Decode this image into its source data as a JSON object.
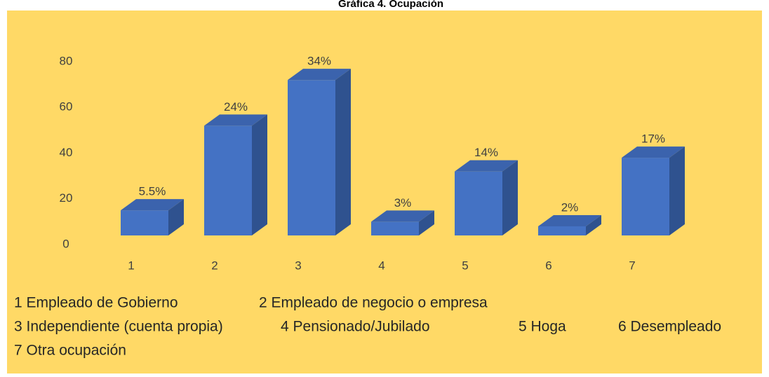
{
  "chart_data": {
    "type": "bar3d",
    "title": "Gráfica 4. Ocupación",
    "categories": [
      "1",
      "2",
      "3",
      "4",
      "5",
      "6",
      "7"
    ],
    "values": [
      11,
      48,
      68,
      6,
      28,
      4,
      34
    ],
    "value_labels": [
      "5.5%",
      "24%",
      "34%",
      "3%",
      "14%",
      "2%",
      "17%"
    ],
    "color": "#4472c4",
    "ylim": [
      0,
      80
    ],
    "yticks": [
      0,
      20,
      40,
      60,
      80
    ],
    "grid": false,
    "notes": [
      [
        "1 Empleado de Gobierno",
        "2 Empleado de negocio o empresa"
      ],
      [
        "3 Independiente (cuenta propia)",
        "4 Pensionado/Jubilado",
        "5 Hoga",
        "6 Desempleado"
      ],
      [
        "7 Otra ocupación"
      ]
    ]
  }
}
